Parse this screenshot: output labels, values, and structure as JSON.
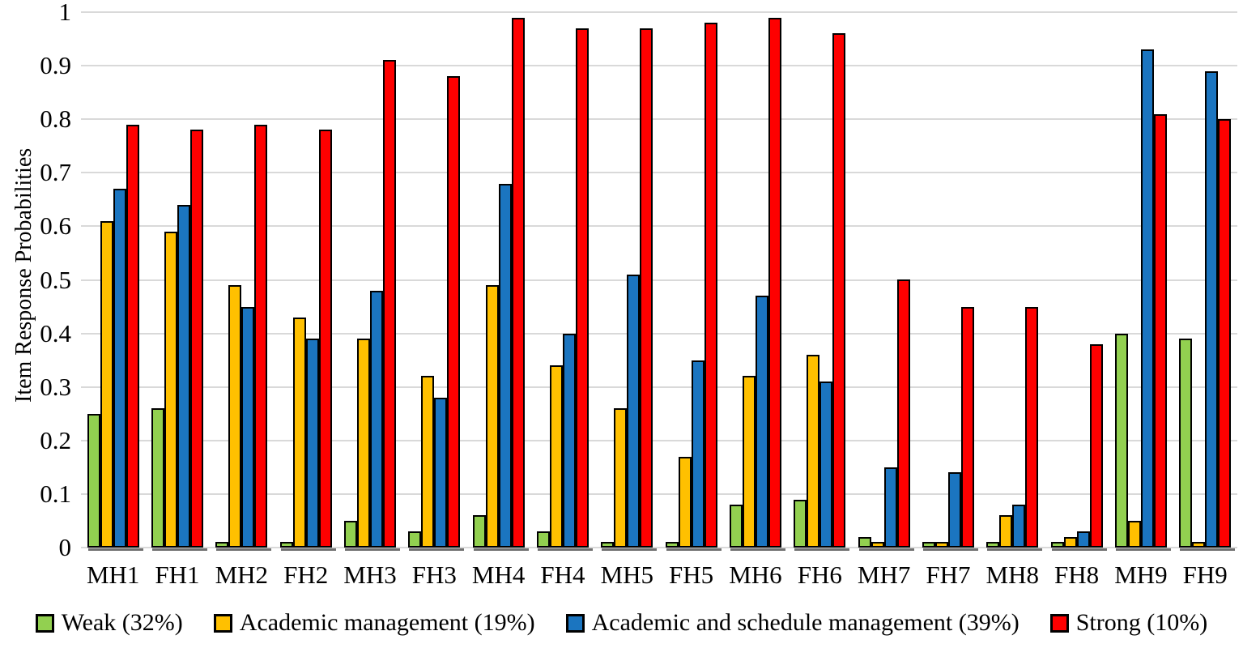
{
  "chart_data": {
    "type": "bar",
    "title": "",
    "xlabel": "",
    "ylabel": "Item Response Probabilities",
    "ylim": [
      0,
      1
    ],
    "ytick_step": 0.1,
    "ytick_labels": [
      "0",
      "0.1",
      "0.2",
      "0.3",
      "0.4",
      "0.5",
      "0.6",
      "0.7",
      "0.8",
      "0.9",
      "1"
    ],
    "grid": "horizontal",
    "gridline_color": "#d9d9d9",
    "bar_outline_color": "#000000",
    "legend_position": "bottom",
    "categories": [
      "MH1",
      "FH1",
      "MH2",
      "FH2",
      "MH3",
      "FH3",
      "MH4",
      "FH4",
      "MH5",
      "FH5",
      "MH6",
      "FH6",
      "MH7",
      "FH7",
      "MH8",
      "FH8",
      "MH9",
      "FH9"
    ],
    "series": [
      {
        "name": "Weak (32%)",
        "color": "#92d050",
        "values": [
          0.25,
          0.26,
          0.01,
          0.01,
          0.05,
          0.03,
          0.06,
          0.03,
          0.01,
          0.01,
          0.08,
          0.09,
          0.02,
          0.01,
          0.01,
          0.01,
          0.4,
          0.39
        ]
      },
      {
        "name": "Academic management (19%)",
        "color": "#ffc000",
        "values": [
          0.61,
          0.59,
          0.49,
          0.43,
          0.39,
          0.32,
          0.49,
          0.34,
          0.26,
          0.17,
          0.32,
          0.36,
          0.01,
          0.01,
          0.06,
          0.02,
          0.05,
          0.01
        ]
      },
      {
        "name": "Academic and schedule management (39%)",
        "color": "#1b75c0",
        "values": [
          0.67,
          0.64,
          0.45,
          0.39,
          0.48,
          0.28,
          0.68,
          0.4,
          0.51,
          0.35,
          0.47,
          0.31,
          0.15,
          0.14,
          0.08,
          0.03,
          0.93,
          0.89
        ]
      },
      {
        "name": "Strong (10%)",
        "color": "#fe0000",
        "values": [
          0.79,
          0.78,
          0.79,
          0.78,
          0.91,
          0.88,
          0.99,
          0.97,
          0.97,
          0.98,
          0.99,
          0.96,
          0.5,
          0.45,
          0.45,
          0.38,
          0.81,
          0.8
        ]
      }
    ]
  }
}
